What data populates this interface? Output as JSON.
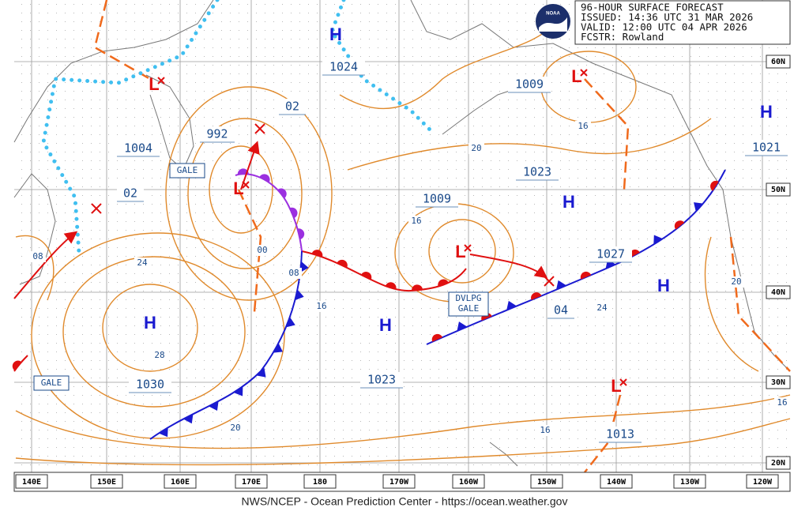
{
  "header": {
    "title": "96-HOUR SURFACE FORECAST",
    "issued": "ISSUED: 14:36 UTC 31 MAR 2026",
    "valid": "VALID:  12:00 UTC 04 APR 2026",
    "forecaster": "FCSTR:  Rowland",
    "logo": "NOAA"
  },
  "longitude_labels": [
    "140E",
    "150E",
    "160E",
    "170E",
    "180",
    "170W",
    "160W",
    "150W",
    "140W",
    "130W",
    "120W"
  ],
  "latitude_labels": [
    "60N",
    "50N",
    "40N",
    "30N",
    "20N"
  ],
  "highs": [
    "H",
    "H",
    "H",
    "H",
    "H",
    "H"
  ],
  "lows": [
    "L",
    "L",
    "L",
    "L",
    "L"
  ],
  "pressure_labels": [
    "1024",
    "1009",
    "02",
    "992",
    "1004",
    "02",
    "1023",
    "1021",
    "1009",
    "1027",
    "04",
    "1023",
    "1030",
    "1013"
  ],
  "contour_labels": [
    "16",
    "20",
    "16",
    "24",
    "08",
    "00",
    "08",
    "16",
    "24",
    "20",
    "28",
    "20",
    "16",
    "16"
  ],
  "gale_labels": [
    "GALE",
    "GALE"
  ],
  "developing_gale": [
    "DVLPG",
    "GALE"
  ],
  "footer": "NWS/NCEP - Ocean Prediction Center - https://ocean.weather.gov"
}
